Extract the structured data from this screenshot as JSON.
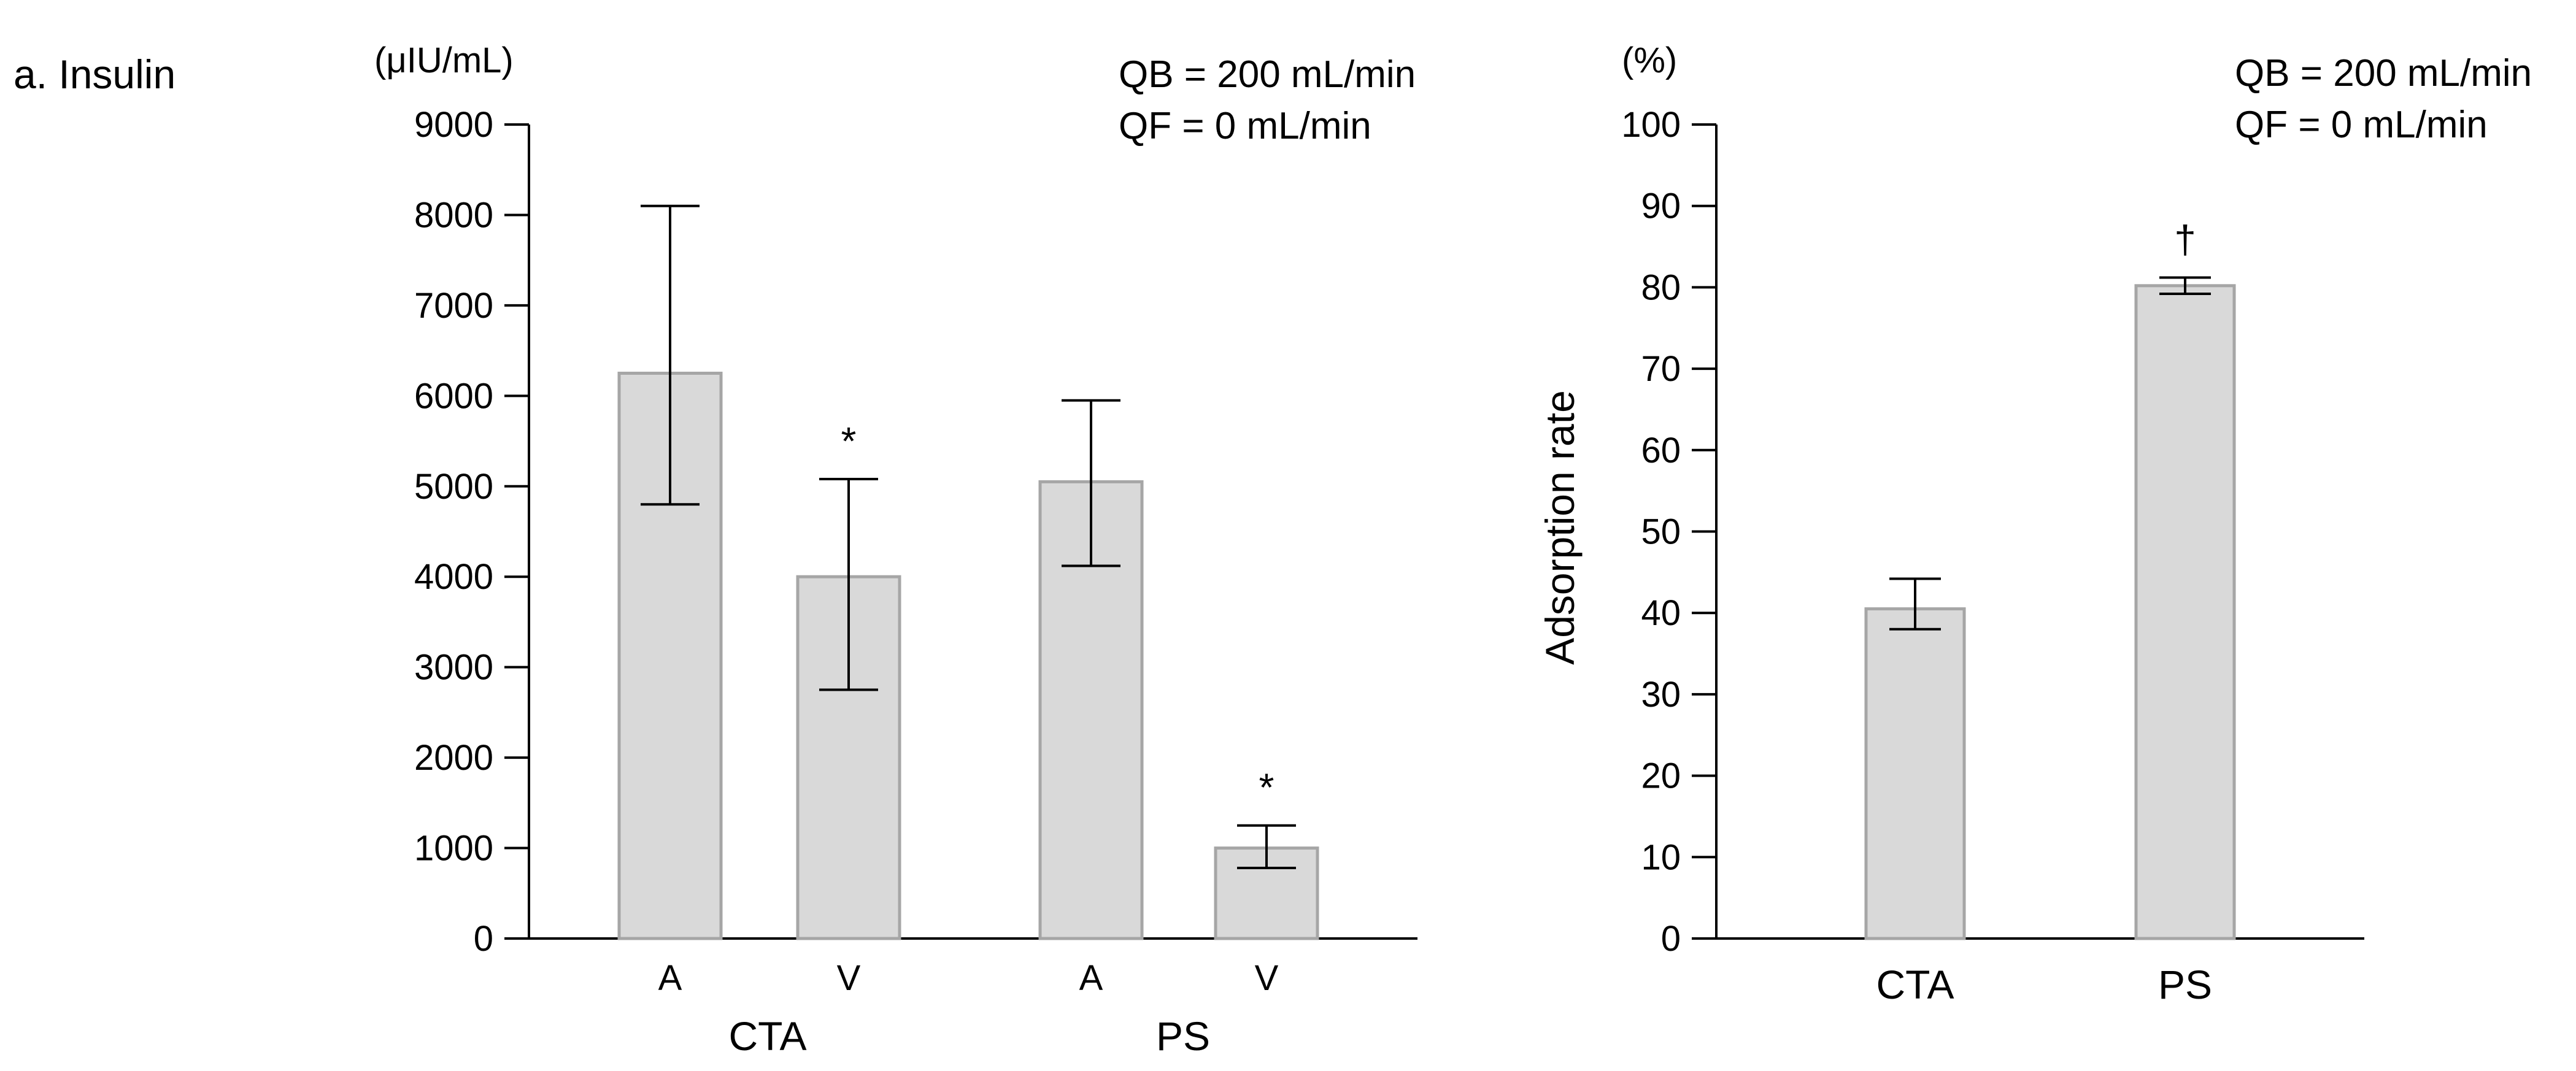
{
  "panel_label": "a. Insulin",
  "chart_data": [
    {
      "type": "bar",
      "unit_label": "(μIU/mL)",
      "annotation_lines": [
        "QB = 200 mL/min",
        "QF = 0 mL/min"
      ],
      "ylim": [
        0,
        9000
      ],
      "yticks": [
        0,
        1000,
        2000,
        3000,
        4000,
        5000,
        6000,
        7000,
        8000,
        9000
      ],
      "groups": [
        "CTA",
        "PS"
      ],
      "bars": [
        {
          "label": "A",
          "group": "CTA",
          "value": 6250,
          "err_low": 4800,
          "err_high": 8100,
          "marker": ""
        },
        {
          "label": "V",
          "group": "CTA",
          "value": 4000,
          "err_low": 2750,
          "err_high": 5080,
          "marker": "*"
        },
        {
          "label": "A",
          "group": "PS",
          "value": 5050,
          "err_low": 4120,
          "err_high": 5950,
          "marker": ""
        },
        {
          "label": "V",
          "group": "PS",
          "value": 1000,
          "err_low": 780,
          "err_high": 1250,
          "marker": "*"
        }
      ],
      "bar_color": "#d9d9d9",
      "bar_edge_color": "#a6a6a6"
    },
    {
      "type": "bar",
      "unit_label": "(%)",
      "ylabel": "Adsorption rate",
      "annotation_lines": [
        "QB = 200 mL/min",
        "QF = 0 mL/min"
      ],
      "ylim": [
        0,
        100
      ],
      "yticks": [
        0,
        10,
        20,
        30,
        40,
        50,
        60,
        70,
        80,
        90,
        100
      ],
      "bars": [
        {
          "label": "CTA",
          "value": 40.5,
          "err_low": 38,
          "err_high": 44.2,
          "marker": ""
        },
        {
          "label": "PS",
          "value": 80.2,
          "err_low": 79.2,
          "err_high": 81.2,
          "marker": "†"
        }
      ],
      "bar_color": "#d9d9d9",
      "bar_edge_color": "#a6a6a6"
    }
  ]
}
